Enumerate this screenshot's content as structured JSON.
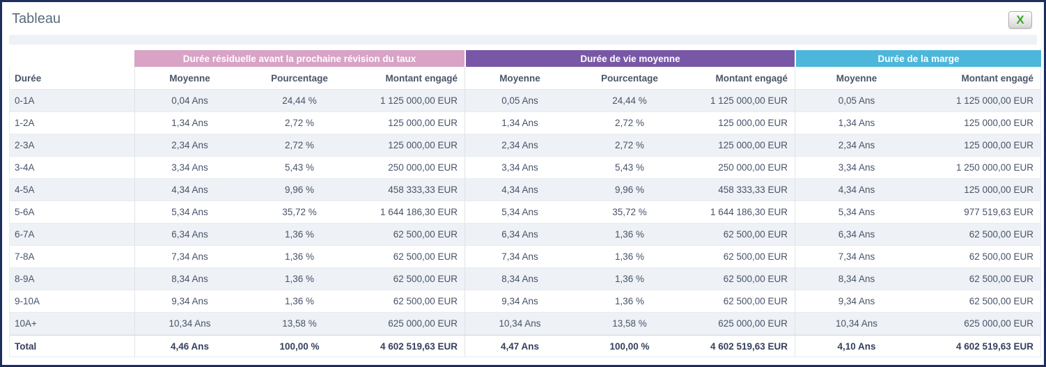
{
  "window": {
    "title": "Tableau"
  },
  "toolbar": {
    "excel_export_label": "X"
  },
  "colors": {
    "group1_header": "#d8a3c5",
    "group2_header": "#7858a6",
    "group3_header": "#4db7db",
    "alt_row": "#eef1f5",
    "text": "#47536b",
    "frame_border": "#1c2d5e",
    "excel_green": "#39a322"
  },
  "table": {
    "row_header_label": "Durée",
    "groups": [
      {
        "label": "Durée résiduelle avant la prochaine révision du taux",
        "columns": [
          "Moyenne",
          "Pourcentage",
          "Montant engagé"
        ]
      },
      {
        "label": "Durée de vie moyenne",
        "columns": [
          "Moyenne",
          "Pourcentage",
          "Montant engagé"
        ]
      },
      {
        "label": "Durée de la marge",
        "columns": [
          "Moyenne",
          "Montant engagé"
        ]
      }
    ],
    "rows": [
      {
        "label": "0-1A",
        "cells": [
          "0,04 Ans",
          "24,44 %",
          "1 125 000,00 EUR",
          "0,05 Ans",
          "24,44 %",
          "1 125 000,00 EUR",
          "0,05 Ans",
          "1 125 000,00 EUR"
        ]
      },
      {
        "label": "1-2A",
        "cells": [
          "1,34 Ans",
          "2,72 %",
          "125 000,00 EUR",
          "1,34 Ans",
          "2,72 %",
          "125 000,00 EUR",
          "1,34 Ans",
          "125 000,00 EUR"
        ]
      },
      {
        "label": "2-3A",
        "cells": [
          "2,34 Ans",
          "2,72 %",
          "125 000,00 EUR",
          "2,34 Ans",
          "2,72 %",
          "125 000,00 EUR",
          "2,34 Ans",
          "125 000,00 EUR"
        ]
      },
      {
        "label": "3-4A",
        "cells": [
          "3,34 Ans",
          "5,43 %",
          "250 000,00 EUR",
          "3,34 Ans",
          "5,43 %",
          "250 000,00 EUR",
          "3,34 Ans",
          "1 250 000,00 EUR"
        ]
      },
      {
        "label": "4-5A",
        "cells": [
          "4,34 Ans",
          "9,96 %",
          "458 333,33 EUR",
          "4,34 Ans",
          "9,96 %",
          "458 333,33 EUR",
          "4,34 Ans",
          "125 000,00 EUR"
        ]
      },
      {
        "label": "5-6A",
        "cells": [
          "5,34 Ans",
          "35,72 %",
          "1 644 186,30 EUR",
          "5,34 Ans",
          "35,72 %",
          "1 644 186,30 EUR",
          "5,34 Ans",
          "977 519,63 EUR"
        ]
      },
      {
        "label": "6-7A",
        "cells": [
          "6,34 Ans",
          "1,36 %",
          "62 500,00 EUR",
          "6,34 Ans",
          "1,36 %",
          "62 500,00 EUR",
          "6,34 Ans",
          "62 500,00 EUR"
        ]
      },
      {
        "label": "7-8A",
        "cells": [
          "7,34 Ans",
          "1,36 %",
          "62 500,00 EUR",
          "7,34 Ans",
          "1,36 %",
          "62 500,00 EUR",
          "7,34 Ans",
          "62 500,00 EUR"
        ]
      },
      {
        "label": "8-9A",
        "cells": [
          "8,34 Ans",
          "1,36 %",
          "62 500,00 EUR",
          "8,34 Ans",
          "1,36 %",
          "62 500,00 EUR",
          "8,34 Ans",
          "62 500,00 EUR"
        ]
      },
      {
        "label": "9-10A",
        "cells": [
          "9,34 Ans",
          "1,36 %",
          "62 500,00 EUR",
          "9,34 Ans",
          "1,36 %",
          "62 500,00 EUR",
          "9,34 Ans",
          "62 500,00 EUR"
        ]
      },
      {
        "label": "10A+",
        "cells": [
          "10,34 Ans",
          "13,58 %",
          "625 000,00 EUR",
          "10,34 Ans",
          "13,58 %",
          "625 000,00 EUR",
          "10,34 Ans",
          "625 000,00 EUR"
        ]
      }
    ],
    "total": {
      "label": "Total",
      "cells": [
        "4,46 Ans",
        "100,00 %",
        "4 602 519,63 EUR",
        "4,47 Ans",
        "100,00 %",
        "4 602 519,63 EUR",
        "4,10 Ans",
        "4 602 519,63 EUR"
      ]
    }
  }
}
